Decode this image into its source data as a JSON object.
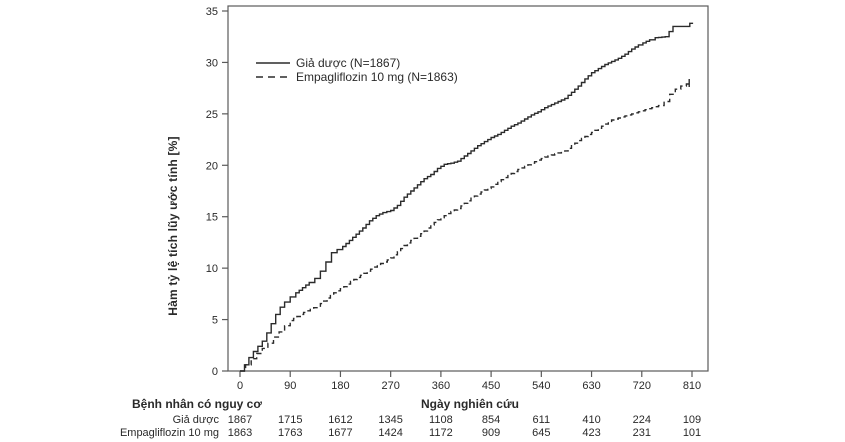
{
  "chart_data": {
    "type": "line",
    "subtype": "kaplan-meier-cumulative-incidence",
    "title": "",
    "xlabel": "Ngày nghiên cứu",
    "ylabel": "Hàm tỷ lệ tích lũy ước tính [%]",
    "xlim": [
      0,
      810
    ],
    "ylim": [
      0,
      35
    ],
    "x_ticks": [
      0,
      90,
      180,
      270,
      360,
      450,
      540,
      630,
      720,
      810
    ],
    "y_ticks": [
      0,
      5,
      10,
      15,
      20,
      25,
      30,
      35
    ],
    "grid": false,
    "legend_position": "inside-top-left",
    "series": [
      {
        "name": "Giả dược (N=1867)",
        "style": "solid",
        "color": "#2b2b2b",
        "points": [
          [
            0,
            0
          ],
          [
            8,
            0.6
          ],
          [
            16,
            1.3
          ],
          [
            24,
            1.9
          ],
          [
            32,
            2.4
          ],
          [
            40,
            2.9
          ],
          [
            48,
            3.7
          ],
          [
            56,
            4.6
          ],
          [
            64,
            5.5
          ],
          [
            72,
            6.2
          ],
          [
            80,
            6.7
          ],
          [
            90,
            7.2
          ],
          [
            100,
            7.6
          ],
          [
            112,
            8.1
          ],
          [
            124,
            8.6
          ],
          [
            134,
            9.0
          ],
          [
            144,
            9.7
          ],
          [
            154,
            10.6
          ],
          [
            164,
            11.5
          ],
          [
            174,
            11.8
          ],
          [
            184,
            12.1
          ],
          [
            196,
            12.7
          ],
          [
            208,
            13.3
          ],
          [
            220,
            13.9
          ],
          [
            232,
            14.6
          ],
          [
            244,
            15.1
          ],
          [
            256,
            15.4
          ],
          [
            270,
            15.6
          ],
          [
            282,
            16.1
          ],
          [
            294,
            16.9
          ],
          [
            306,
            17.5
          ],
          [
            318,
            18.1
          ],
          [
            330,
            18.7
          ],
          [
            342,
            19.1
          ],
          [
            354,
            19.7
          ],
          [
            366,
            20.1
          ],
          [
            378,
            20.2
          ],
          [
            390,
            20.4
          ],
          [
            402,
            20.9
          ],
          [
            414,
            21.4
          ],
          [
            426,
            21.9
          ],
          [
            438,
            22.3
          ],
          [
            450,
            22.7
          ],
          [
            462,
            23.0
          ],
          [
            474,
            23.4
          ],
          [
            486,
            23.8
          ],
          [
            498,
            24.1
          ],
          [
            510,
            24.5
          ],
          [
            522,
            24.9
          ],
          [
            534,
            25.2
          ],
          [
            546,
            25.6
          ],
          [
            558,
            25.9
          ],
          [
            570,
            26.2
          ],
          [
            582,
            26.5
          ],
          [
            594,
            27.1
          ],
          [
            606,
            27.7
          ],
          [
            618,
            28.4
          ],
          [
            630,
            29.0
          ],
          [
            642,
            29.4
          ],
          [
            654,
            29.8
          ],
          [
            666,
            30.1
          ],
          [
            678,
            30.4
          ],
          [
            690,
            30.8
          ],
          [
            702,
            31.3
          ],
          [
            714,
            31.7
          ],
          [
            722,
            31.9
          ],
          [
            734,
            32.2
          ],
          [
            744,
            32.4
          ],
          [
            762,
            32.5
          ],
          [
            776,
            33.5
          ],
          [
            800,
            33.5
          ],
          [
            806,
            33.8
          ],
          [
            812,
            33.8
          ]
        ]
      },
      {
        "name": "Empagliflozin 10 mg (N=1863)",
        "style": "dashed",
        "color": "#2b2b2b",
        "end_censor_tick": true,
        "points": [
          [
            0,
            0
          ],
          [
            10,
            0.6
          ],
          [
            20,
            1.2
          ],
          [
            30,
            1.7
          ],
          [
            40,
            2.2
          ],
          [
            50,
            2.7
          ],
          [
            60,
            3.3
          ],
          [
            70,
            3.8
          ],
          [
            80,
            4.4
          ],
          [
            90,
            4.9
          ],
          [
            102,
            5.3
          ],
          [
            114,
            5.7
          ],
          [
            126,
            6.0
          ],
          [
            138,
            6.3
          ],
          [
            150,
            6.8
          ],
          [
            162,
            7.4
          ],
          [
            174,
            7.8
          ],
          [
            186,
            8.2
          ],
          [
            198,
            8.7
          ],
          [
            210,
            9.1
          ],
          [
            222,
            9.5
          ],
          [
            234,
            9.9
          ],
          [
            246,
            10.3
          ],
          [
            258,
            10.6
          ],
          [
            270,
            11.0
          ],
          [
            282,
            11.6
          ],
          [
            294,
            12.2
          ],
          [
            306,
            12.7
          ],
          [
            318,
            13.1
          ],
          [
            330,
            13.6
          ],
          [
            342,
            14.2
          ],
          [
            354,
            14.7
          ],
          [
            366,
            15.1
          ],
          [
            378,
            15.5
          ],
          [
            390,
            15.8
          ],
          [
            402,
            16.3
          ],
          [
            414,
            16.8
          ],
          [
            426,
            17.2
          ],
          [
            438,
            17.6
          ],
          [
            450,
            17.9
          ],
          [
            462,
            18.4
          ],
          [
            474,
            18.8
          ],
          [
            486,
            19.2
          ],
          [
            498,
            19.6
          ],
          [
            510,
            19.9
          ],
          [
            522,
            20.2
          ],
          [
            534,
            20.5
          ],
          [
            546,
            20.8
          ],
          [
            558,
            21.0
          ],
          [
            570,
            21.2
          ],
          [
            582,
            21.4
          ],
          [
            594,
            21.9
          ],
          [
            606,
            22.4
          ],
          [
            618,
            22.8
          ],
          [
            630,
            23.2
          ],
          [
            642,
            23.6
          ],
          [
            654,
            24.0
          ],
          [
            666,
            24.4
          ],
          [
            678,
            24.6
          ],
          [
            690,
            24.8
          ],
          [
            702,
            25.0
          ],
          [
            714,
            25.2
          ],
          [
            726,
            25.4
          ],
          [
            738,
            25.6
          ],
          [
            750,
            25.8
          ],
          [
            760,
            26.2
          ],
          [
            770,
            26.9
          ],
          [
            780,
            27.4
          ],
          [
            790,
            27.7
          ],
          [
            800,
            27.9
          ],
          [
            805,
            28.0
          ]
        ]
      }
    ]
  },
  "risk_table": {
    "title": "Bệnh nhân có nguy cơ",
    "rows": [
      {
        "label": "Giả dược",
        "values": [
          "1867",
          "1715",
          "1612",
          "1345",
          "1108",
          "854",
          "611",
          "410",
          "224",
          "109"
        ]
      },
      {
        "label": "Empagliflozin 10 mg",
        "values": [
          "1863",
          "1763",
          "1677",
          "1424",
          "1172",
          "909",
          "645",
          "423",
          "231",
          "101"
        ]
      }
    ]
  },
  "colors": {
    "curve": "#2b2b2b",
    "frame": "#5a5a5a",
    "text": "#2a2a2a",
    "background": "#ffffff"
  }
}
